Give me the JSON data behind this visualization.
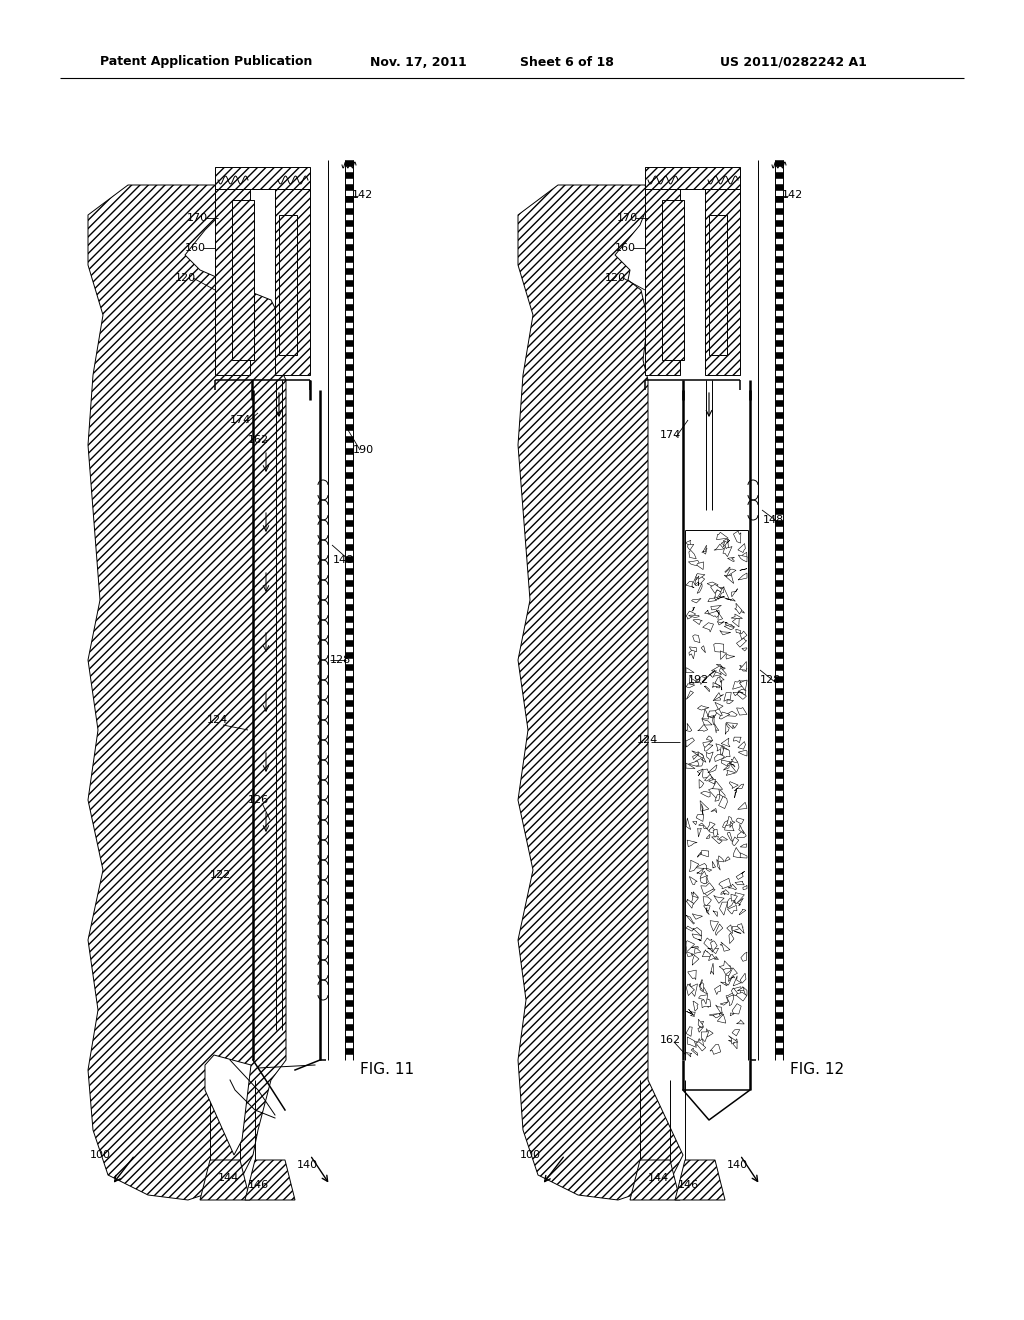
{
  "bg_color": "#ffffff",
  "header_text": "Patent Application Publication",
  "header_date": "Nov. 17, 2011",
  "header_sheet": "Sheet 6 of 18",
  "header_patent": "US 2011/0282242 A1",
  "fig11_label": "FIG. 11",
  "fig12_label": "FIG. 12",
  "lw_thin": 0.7,
  "lw_med": 1.1,
  "lw_thick": 1.8
}
